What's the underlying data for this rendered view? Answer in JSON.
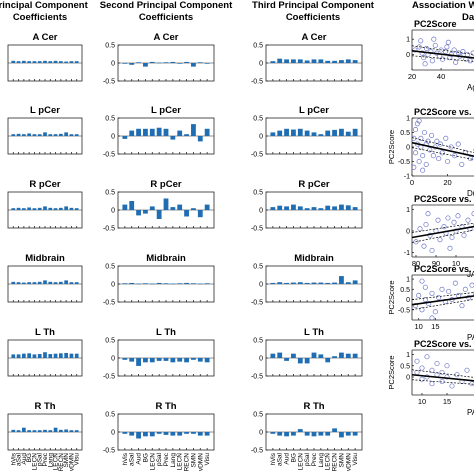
{
  "colors": {
    "bar": "#1f6eb4",
    "scatter": "#6f79c8",
    "fit": "#000000",
    "axis": "#262626"
  },
  "column_titles": [
    [
      "Principal Component",
      "Coefficients"
    ],
    [
      "Second Principal Component",
      "Coefficients"
    ],
    [
      "Third Principal Component",
      "Coefficients"
    ],
    [
      "Association W",
      "Da"
    ]
  ],
  "x_tick_labels": [
    "hVis",
    "aSal",
    "Aud",
    "BG",
    "LECN",
    "pSal",
    "Prec",
    "Lang",
    "LECN",
    "RECN",
    "SMN",
    "vDMN",
    "Visu"
  ],
  "chart_data": [
    {
      "type": "bar",
      "title": "A Cer",
      "column": 1,
      "ylim": [
        -0.5,
        0.5
      ],
      "yticks": [],
      "values": [
        0.06,
        0.05,
        0.06,
        0.05,
        0.05,
        0.05,
        0.06,
        0.05,
        0.06,
        0.05,
        0.04,
        0.05,
        0.05
      ]
    },
    {
      "type": "bar",
      "title": "L pCer",
      "column": 1,
      "ylim": [
        -0.5,
        0.5
      ],
      "yticks": [],
      "values": [
        0.05,
        0.06,
        0.05,
        0.07,
        0.05,
        0.05,
        0.1,
        0.05,
        0.05,
        0.06,
        0.1,
        0.05,
        0.05
      ]
    },
    {
      "type": "bar",
      "title": "R pCer",
      "column": 1,
      "ylim": [
        -0.5,
        0.5
      ],
      "yticks": [],
      "values": [
        0.05,
        0.06,
        0.05,
        0.07,
        0.05,
        0.06,
        0.1,
        0.06,
        0.05,
        0.06,
        0.1,
        0.06,
        0.05
      ]
    },
    {
      "type": "bar",
      "title": "Midbrain",
      "column": 1,
      "ylim": [
        -0.5,
        0.5
      ],
      "yticks": [],
      "values": [
        0.06,
        0.05,
        0.04,
        0.05,
        0.05,
        0.06,
        0.1,
        0.06,
        0.05,
        0.06,
        0.1,
        0.05,
        0.05
      ]
    },
    {
      "type": "bar",
      "title": "L Th",
      "column": 1,
      "ylim": [
        -0.5,
        0.5
      ],
      "yticks": [],
      "values": [
        0.1,
        0.1,
        0.12,
        0.13,
        0.1,
        0.11,
        0.16,
        0.11,
        0.12,
        0.13,
        0.14,
        0.12,
        0.12
      ]
    },
    {
      "type": "bar",
      "title": "R Th",
      "column": 1,
      "ylim": [
        -0.5,
        0.5
      ],
      "yticks": [],
      "values": [
        0.06,
        0.05,
        0.12,
        0.05,
        0.05,
        0.05,
        0.06,
        0.05,
        0.12,
        0.06,
        0.07,
        0.05,
        0.05
      ]
    },
    {
      "type": "bar",
      "title": "A Cer",
      "column": 2,
      "ylim": [
        -0.5,
        0.5
      ],
      "yticks": [
        "0.5",
        "0",
        "-0.5"
      ],
      "values": [
        -0.02,
        -0.05,
        0.02,
        -0.1,
        0.03,
        0.01,
        0.02,
        0.03,
        -0.02,
        0.03,
        -0.1,
        0.02,
        -0.02
      ]
    },
    {
      "type": "bar",
      "title": "L pCer",
      "column": 2,
      "ylim": [
        -0.5,
        0.5
      ],
      "yticks": [
        "0.5",
        "0",
        "-0.5"
      ],
      "values": [
        -0.08,
        0.15,
        0.2,
        0.2,
        0.2,
        0.23,
        0.2,
        -0.1,
        0.15,
        0.05,
        0.33,
        -0.15,
        0.2
      ]
    },
    {
      "type": "bar",
      "title": "R pCer",
      "column": 2,
      "ylim": [
        -0.5,
        0.5
      ],
      "yticks": [
        "0.5",
        "0",
        "-0.5"
      ],
      "values": [
        0.15,
        0.25,
        -0.15,
        -0.1,
        0.1,
        -0.25,
        0.32,
        0.08,
        0.15,
        -0.18,
        0.05,
        -0.2,
        0.15
      ]
    },
    {
      "type": "bar",
      "title": "Midbrain",
      "column": 2,
      "ylim": [
        -0.5,
        0.5
      ],
      "yticks": [
        "0.5",
        "0",
        "-0.5"
      ],
      "values": [
        0.02,
        0.03,
        0.01,
        0.02,
        0.01,
        0.03,
        0.02,
        0.01,
        0.02,
        0.03,
        0.02,
        0.01,
        0.02
      ]
    },
    {
      "type": "bar",
      "title": "L Th",
      "column": 2,
      "ylim": [
        -0.5,
        0.5
      ],
      "yticks": [
        "0.5",
        "0",
        "-0.5"
      ],
      "values": [
        -0.05,
        -0.1,
        -0.22,
        -0.12,
        -0.12,
        -0.08,
        -0.08,
        -0.12,
        -0.1,
        -0.12,
        -0.05,
        -0.1,
        -0.12
      ]
    },
    {
      "type": "bar",
      "title": "R Th",
      "column": 2,
      "ylim": [
        -0.5,
        0.5
      ],
      "yticks": [
        "0.5",
        "0",
        "-0.5"
      ],
      "values": [
        -0.05,
        -0.1,
        -0.18,
        -0.12,
        -0.12,
        -0.05,
        -0.08,
        -0.1,
        -0.1,
        -0.05,
        -0.05,
        -0.1,
        -0.1
      ]
    },
    {
      "type": "bar",
      "title": "A Cer",
      "column": 3,
      "ylim": [
        -0.5,
        0.5
      ],
      "yticks": [
        "0.5",
        "0",
        "-0.5"
      ],
      "values": [
        0.05,
        0.12,
        0.1,
        0.1,
        0.1,
        0.07,
        0.1,
        0.1,
        0.06,
        0.06,
        0.08,
        0.1,
        0.08
      ]
    },
    {
      "type": "bar",
      "title": "L pCer",
      "column": 3,
      "ylim": [
        -0.5,
        0.5
      ],
      "yticks": [
        "0.5",
        "0",
        "-0.5"
      ],
      "values": [
        0.1,
        0.15,
        0.2,
        0.18,
        0.2,
        0.15,
        0.1,
        0.05,
        0.15,
        0.17,
        0.2,
        0.12,
        0.2
      ]
    },
    {
      "type": "bar",
      "title": "R pCer",
      "column": 3,
      "ylim": [
        -0.5,
        0.5
      ],
      "yticks": [
        "0.5",
        "0",
        "-0.5"
      ],
      "values": [
        0.08,
        0.12,
        0.1,
        0.15,
        0.1,
        0.05,
        0.08,
        0.05,
        0.12,
        0.1,
        0.15,
        0.13,
        0.08
      ]
    },
    {
      "type": "bar",
      "title": "Midbrain",
      "column": 3,
      "ylim": [
        -0.5,
        0.5
      ],
      "yticks": [
        "0.5",
        "0",
        "-0.5"
      ],
      "values": [
        0.03,
        0.05,
        0.03,
        0.04,
        0.05,
        0.03,
        0.04,
        0.04,
        0.03,
        0.04,
        0.22,
        0.05,
        0.1
      ]
    },
    {
      "type": "bar",
      "title": "L Th",
      "column": 3,
      "ylim": [
        -0.5,
        0.5
      ],
      "yticks": [
        "0.5",
        "0",
        "-0.5"
      ],
      "values": [
        0.12,
        0.15,
        -0.08,
        0.12,
        -0.15,
        -0.15,
        0.15,
        0.1,
        -0.12,
        0.05,
        0.15,
        0.12,
        0.12
      ]
    },
    {
      "type": "bar",
      "title": "R Th",
      "column": 3,
      "ylim": [
        -0.5,
        0.5
      ],
      "yticks": [
        "0.5",
        "0",
        "-0.5"
      ],
      "values": [
        -0.05,
        -0.1,
        -0.12,
        -0.1,
        0.08,
        -0.1,
        -0.12,
        -0.1,
        -0.1,
        0.1,
        -0.15,
        -0.1,
        -0.1
      ]
    },
    {
      "type": "scatter",
      "title": "PC2Score",
      "column": 4,
      "xlim": [
        20,
        75
      ],
      "ylim": [
        -1,
        1.6
      ],
      "xticks": [
        "20",
        "40"
      ],
      "yticks": [
        "1",
        "0"
      ],
      "xlabel": "Ag",
      "ylabel": "",
      "fit": [
        [
          20,
          0.25
        ],
        [
          75,
          -0.35
        ]
      ],
      "points": [
        [
          22,
          0.3
        ],
        [
          25,
          0.5
        ],
        [
          27,
          0.1
        ],
        [
          28,
          -0.2
        ],
        [
          30,
          0.4
        ],
        [
          31,
          0.0
        ],
        [
          33,
          0.2
        ],
        [
          34,
          -0.4
        ],
        [
          36,
          0.6
        ],
        [
          37,
          0.1
        ],
        [
          39,
          -0.1
        ],
        [
          40,
          0.3
        ],
        [
          41,
          -0.3
        ],
        [
          43,
          0.2
        ],
        [
          44,
          0.5
        ],
        [
          46,
          -0.2
        ],
        [
          47,
          0.0
        ],
        [
          49,
          0.3
        ],
        [
          50,
          -0.5
        ],
        [
          52,
          0.1
        ],
        [
          53,
          -0.1
        ],
        [
          55,
          0.2
        ],
        [
          57,
          -0.3
        ],
        [
          58,
          0.0
        ],
        [
          60,
          -0.4
        ],
        [
          62,
          0.1
        ],
        [
          64,
          -0.2
        ],
        [
          66,
          -0.5
        ],
        [
          68,
          0.0
        ],
        [
          70,
          -0.3
        ],
        [
          72,
          -0.6
        ],
        [
          26,
          0.9
        ],
        [
          35,
          1.0
        ],
        [
          45,
          0.8
        ],
        [
          29,
          -0.6
        ]
      ]
    },
    {
      "type": "scatter",
      "title": "PC2Score vs.",
      "column": 4,
      "xlim": [
        0,
        45
      ],
      "ylim": [
        -1,
        1
      ],
      "xticks": [
        "0",
        "20"
      ],
      "yticks": [
        "1",
        "0.5",
        "0",
        "-0.5",
        "-1"
      ],
      "xlabel": "Dura",
      "ylabel": "PC2Score",
      "fit": [
        [
          0,
          0.15
        ],
        [
          45,
          -0.45
        ]
      ],
      "points": [
        [
          1,
          0.3
        ],
        [
          2,
          0.6
        ],
        [
          2,
          -0.2
        ],
        [
          3,
          0.1
        ],
        [
          3,
          0.8
        ],
        [
          4,
          -0.5
        ],
        [
          5,
          0.3
        ],
        [
          5,
          0.0
        ],
        [
          6,
          -0.3
        ],
        [
          7,
          0.5
        ],
        [
          8,
          0.1
        ],
        [
          8,
          -0.6
        ],
        [
          9,
          0.2
        ],
        [
          10,
          -0.1
        ],
        [
          11,
          0.4
        ],
        [
          12,
          -0.3
        ],
        [
          13,
          0.0
        ],
        [
          14,
          0.2
        ],
        [
          15,
          -0.4
        ],
        [
          16,
          0.1
        ],
        [
          17,
          -0.2
        ],
        [
          19,
          0.3
        ],
        [
          20,
          -0.5
        ],
        [
          22,
          0.0
        ],
        [
          24,
          -0.3
        ],
        [
          26,
          0.1
        ],
        [
          28,
          -0.6
        ],
        [
          30,
          -0.2
        ],
        [
          33,
          -0.4
        ],
        [
          36,
          -0.1
        ],
        [
          40,
          -0.5
        ],
        [
          1,
          -0.7
        ],
        [
          4,
          0.9
        ],
        [
          6,
          -0.8
        ]
      ]
    },
    {
      "type": "scatter",
      "title": "PC2Score vs.",
      "column": 4,
      "xlim": [
        78,
        118
      ],
      "ylim": [
        -1.2,
        1.2
      ],
      "xticks": [
        "80",
        "90",
        "10"
      ],
      "yticks": [
        "1",
        "0",
        "-1"
      ],
      "xlabel": "JARTTo",
      "ylabel": "",
      "fit": [
        [
          78,
          -0.3
        ],
        [
          118,
          0.35
        ]
      ],
      "points": [
        [
          80,
          -0.5
        ],
        [
          82,
          0.1
        ],
        [
          84,
          -0.7
        ],
        [
          85,
          0.3
        ],
        [
          87,
          -0.2
        ],
        [
          88,
          -0.9
        ],
        [
          90,
          0.0
        ],
        [
          91,
          0.5
        ],
        [
          92,
          -0.4
        ],
        [
          94,
          0.2
        ],
        [
          95,
          -0.1
        ],
        [
          96,
          0.6
        ],
        [
          98,
          -0.3
        ],
        [
          99,
          0.4
        ],
        [
          100,
          0.0
        ],
        [
          101,
          0.7
        ],
        [
          103,
          0.2
        ],
        [
          104,
          -0.2
        ],
        [
          106,
          0.5
        ],
        [
          107,
          0.1
        ],
        [
          109,
          0.8
        ],
        [
          110,
          0.3
        ],
        [
          112,
          0.6
        ],
        [
          113,
          0.0
        ],
        [
          115,
          0.9
        ],
        [
          116,
          0.4
        ],
        [
          86,
          0.8
        ],
        [
          97,
          -0.8
        ]
      ]
    },
    {
      "type": "scatter",
      "title": "PC2Score vs.",
      "column": 4,
      "xlim": [
        8,
        32
      ],
      "ylim": [
        -1,
        1.2
      ],
      "xticks": [
        "10",
        "15"
      ],
      "yticks": [
        "1",
        "0.5",
        "0",
        "-0.5"
      ],
      "xlabel": "PANSS",
      "ylabel": "PC2Score",
      "fit": [
        [
          8,
          -0.25
        ],
        [
          32,
          0.3
        ]
      ],
      "points": [
        [
          9,
          -0.3
        ],
        [
          10,
          0.2
        ],
        [
          11,
          -0.5
        ],
        [
          12,
          0.0
        ],
        [
          12,
          0.6
        ],
        [
          13,
          -0.2
        ],
        [
          14,
          0.3
        ],
        [
          15,
          -0.6
        ],
        [
          16,
          0.1
        ],
        [
          17,
          0.5
        ],
        [
          18,
          -0.1
        ],
        [
          19,
          0.4
        ],
        [
          20,
          0.0
        ],
        [
          21,
          0.8
        ],
        [
          22,
          0.2
        ],
        [
          23,
          -0.3
        ],
        [
          24,
          0.5
        ],
        [
          25,
          0.1
        ],
        [
          26,
          0.7
        ],
        [
          27,
          0.3
        ],
        [
          28,
          0.9
        ],
        [
          30,
          0.4
        ],
        [
          11,
          0.9
        ],
        [
          14,
          -0.9
        ]
      ]
    },
    {
      "type": "scatter",
      "title": "PC2Score vs. P",
      "column": 4,
      "xlim": [
        8,
        24
      ],
      "ylim": [
        -0.8,
        1.2
      ],
      "xticks": [
        "10",
        "15"
      ],
      "yticks": [
        "1",
        "0.5",
        "0"
      ],
      "xlabel": "PANSS",
      "ylabel": "PC2Score",
      "fit": [
        [
          8,
          0.1
        ],
        [
          24,
          -0.25
        ]
      ],
      "points": [
        [
          9,
          0.2
        ],
        [
          9,
          0.7
        ],
        [
          10,
          -0.1
        ],
        [
          10,
          0.4
        ],
        [
          11,
          0.0
        ],
        [
          11,
          0.9
        ],
        [
          12,
          -0.3
        ],
        [
          12,
          0.3
        ],
        [
          13,
          0.1
        ],
        [
          13,
          0.6
        ],
        [
          14,
          -0.2
        ],
        [
          14,
          0.2
        ],
        [
          15,
          0.0
        ],
        [
          15,
          0.5
        ],
        [
          16,
          -0.4
        ],
        [
          17,
          0.1
        ],
        [
          18,
          -0.2
        ],
        [
          19,
          0.3
        ],
        [
          20,
          -0.3
        ],
        [
          21,
          0.0
        ],
        [
          22,
          -0.5
        ],
        [
          23,
          -0.1
        ]
      ]
    }
  ]
}
